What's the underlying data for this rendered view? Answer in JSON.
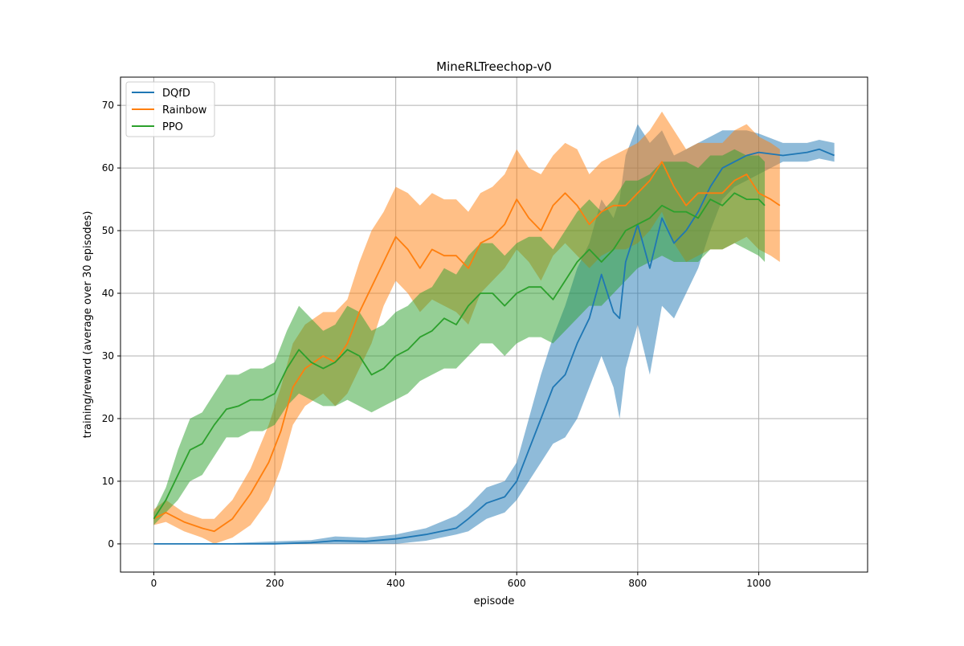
{
  "chart_data": {
    "type": "line",
    "title": "MineRLTreechop-v0",
    "xlabel": "episode",
    "ylabel": "training/reward (average over 30 episodes)",
    "xlim": [
      -55,
      1180
    ],
    "ylim": [
      -4.5,
      74.5
    ],
    "xticks": [
      0,
      200,
      400,
      600,
      800,
      1000
    ],
    "yticks": [
      0,
      10,
      20,
      30,
      40,
      50,
      60,
      70
    ],
    "grid": true,
    "legend_position": "top-left",
    "series": [
      {
        "name": "DQfD",
        "color": "#1f77b4",
        "x": [
          0,
          100,
          200,
          260,
          300,
          350,
          400,
          450,
          500,
          520,
          550,
          580,
          600,
          620,
          640,
          660,
          680,
          700,
          720,
          740,
          760,
          770,
          780,
          800,
          820,
          840,
          860,
          880,
          900,
          920,
          940,
          960,
          980,
          1000,
          1040,
          1080,
          1100,
          1125
        ],
        "mean": [
          0,
          0,
          0,
          0.2,
          0.5,
          0.4,
          0.8,
          1.5,
          2.5,
          4,
          6.5,
          7.5,
          10,
          15,
          20,
          25,
          27,
          32,
          36,
          43,
          37,
          36,
          45,
          51,
          44,
          52,
          48,
          50,
          53,
          57,
          60,
          61,
          62,
          62.5,
          62,
          62.5,
          63,
          62
        ],
        "lower": [
          0,
          0,
          0,
          0,
          0,
          0,
          0,
          0.5,
          1.5,
          2,
          4,
          5,
          7,
          10,
          13,
          16,
          17,
          20,
          25,
          30,
          25,
          20,
          28,
          35,
          27,
          38,
          36,
          40,
          44,
          50,
          55,
          57,
          58,
          59,
          61,
          61,
          61.5,
          61
        ],
        "upper": [
          0,
          0,
          0.4,
          0.6,
          1.2,
          1,
          1.5,
          2.5,
          4.5,
          6,
          9,
          10,
          13,
          20,
          27,
          33,
          38,
          44,
          48,
          55,
          52,
          55,
          62,
          67,
          64,
          66,
          62,
          63,
          64,
          65,
          66,
          66,
          66,
          65.5,
          64,
          64,
          64.5,
          64
        ]
      },
      {
        "name": "Rainbow",
        "color": "#ff7f0e",
        "x": [
          0,
          20,
          50,
          80,
          100,
          130,
          160,
          190,
          210,
          230,
          250,
          280,
          300,
          320,
          340,
          360,
          380,
          400,
          420,
          440,
          460,
          480,
          500,
          520,
          540,
          560,
          580,
          600,
          620,
          640,
          660,
          680,
          700,
          720,
          740,
          760,
          780,
          800,
          820,
          840,
          860,
          880,
          900,
          920,
          940,
          960,
          980,
          1000,
          1020,
          1035
        ],
        "mean": [
          4,
          5,
          3.5,
          2.5,
          2,
          4,
          8,
          13,
          18,
          25,
          28,
          30,
          29,
          32,
          37,
          41,
          45,
          49,
          47,
          44,
          47,
          46,
          46,
          44,
          48,
          49,
          51,
          55,
          52,
          50,
          54,
          56,
          54,
          51,
          53,
          54,
          54,
          56,
          58,
          61,
          57,
          54,
          56,
          56,
          56,
          58,
          59,
          56,
          55,
          54
        ],
        "lower": [
          3,
          3.5,
          2,
          1,
          0,
          1,
          3,
          7,
          12,
          19,
          22,
          24,
          22,
          24,
          28,
          32,
          38,
          42,
          40,
          37,
          39,
          38,
          37,
          35,
          40,
          42,
          44,
          47,
          45,
          42,
          46,
          48,
          46,
          44,
          46,
          47,
          47,
          48,
          50,
          53,
          48,
          45,
          46,
          47,
          47,
          48,
          49,
          47,
          46,
          45
        ],
        "upper": [
          5.5,
          7,
          5,
          4,
          4,
          7,
          12,
          19,
          25,
          32,
          35,
          37,
          37,
          39,
          45,
          50,
          53,
          57,
          56,
          54,
          56,
          55,
          55,
          53,
          56,
          57,
          59,
          63,
          60,
          59,
          62,
          64,
          63,
          59,
          61,
          62,
          63,
          64,
          66,
          69,
          66,
          63,
          64,
          64,
          64,
          66,
          67,
          65,
          64,
          63
        ]
      },
      {
        "name": "PPO",
        "color": "#2ca02c",
        "x": [
          0,
          20,
          40,
          60,
          80,
          100,
          120,
          140,
          160,
          180,
          200,
          220,
          240,
          260,
          280,
          300,
          320,
          340,
          360,
          380,
          400,
          420,
          440,
          460,
          480,
          500,
          520,
          540,
          560,
          580,
          600,
          620,
          640,
          660,
          680,
          700,
          720,
          740,
          760,
          780,
          800,
          820,
          840,
          860,
          880,
          900,
          920,
          940,
          960,
          980,
          1000,
          1010
        ],
        "mean": [
          4,
          7,
          11,
          15,
          16,
          19,
          21.5,
          22,
          23,
          23,
          24,
          28,
          31,
          29,
          28,
          29,
          31,
          30,
          27,
          28,
          30,
          31,
          33,
          34,
          36,
          35,
          38,
          40,
          40,
          38,
          40,
          41,
          41,
          39,
          42,
          45,
          47,
          45,
          47,
          50,
          51,
          52,
          54,
          53,
          53,
          52,
          55,
          54,
          56,
          55,
          55,
          54
        ],
        "lower": [
          3,
          5,
          7,
          10,
          11,
          14,
          17,
          17,
          18,
          18,
          19,
          22,
          24,
          23,
          22,
          22,
          23,
          22,
          21,
          22,
          23,
          24,
          26,
          27,
          28,
          28,
          30,
          32,
          32,
          30,
          32,
          33,
          33,
          32,
          34,
          36,
          38,
          38,
          40,
          42,
          44,
          45,
          46,
          45,
          45,
          45,
          47,
          47,
          48,
          47,
          46,
          45
        ],
        "upper": [
          5,
          9,
          15,
          20,
          21,
          24,
          27,
          27,
          28,
          28,
          29,
          34,
          38,
          36,
          34,
          35,
          38,
          37,
          34,
          35,
          37,
          38,
          40,
          41,
          44,
          43,
          46,
          48,
          48,
          46,
          48,
          49,
          49,
          47,
          50,
          53,
          55,
          53,
          55,
          58,
          58,
          59,
          61,
          61,
          61,
          60,
          62,
          62,
          63,
          62,
          62,
          61
        ]
      }
    ]
  }
}
